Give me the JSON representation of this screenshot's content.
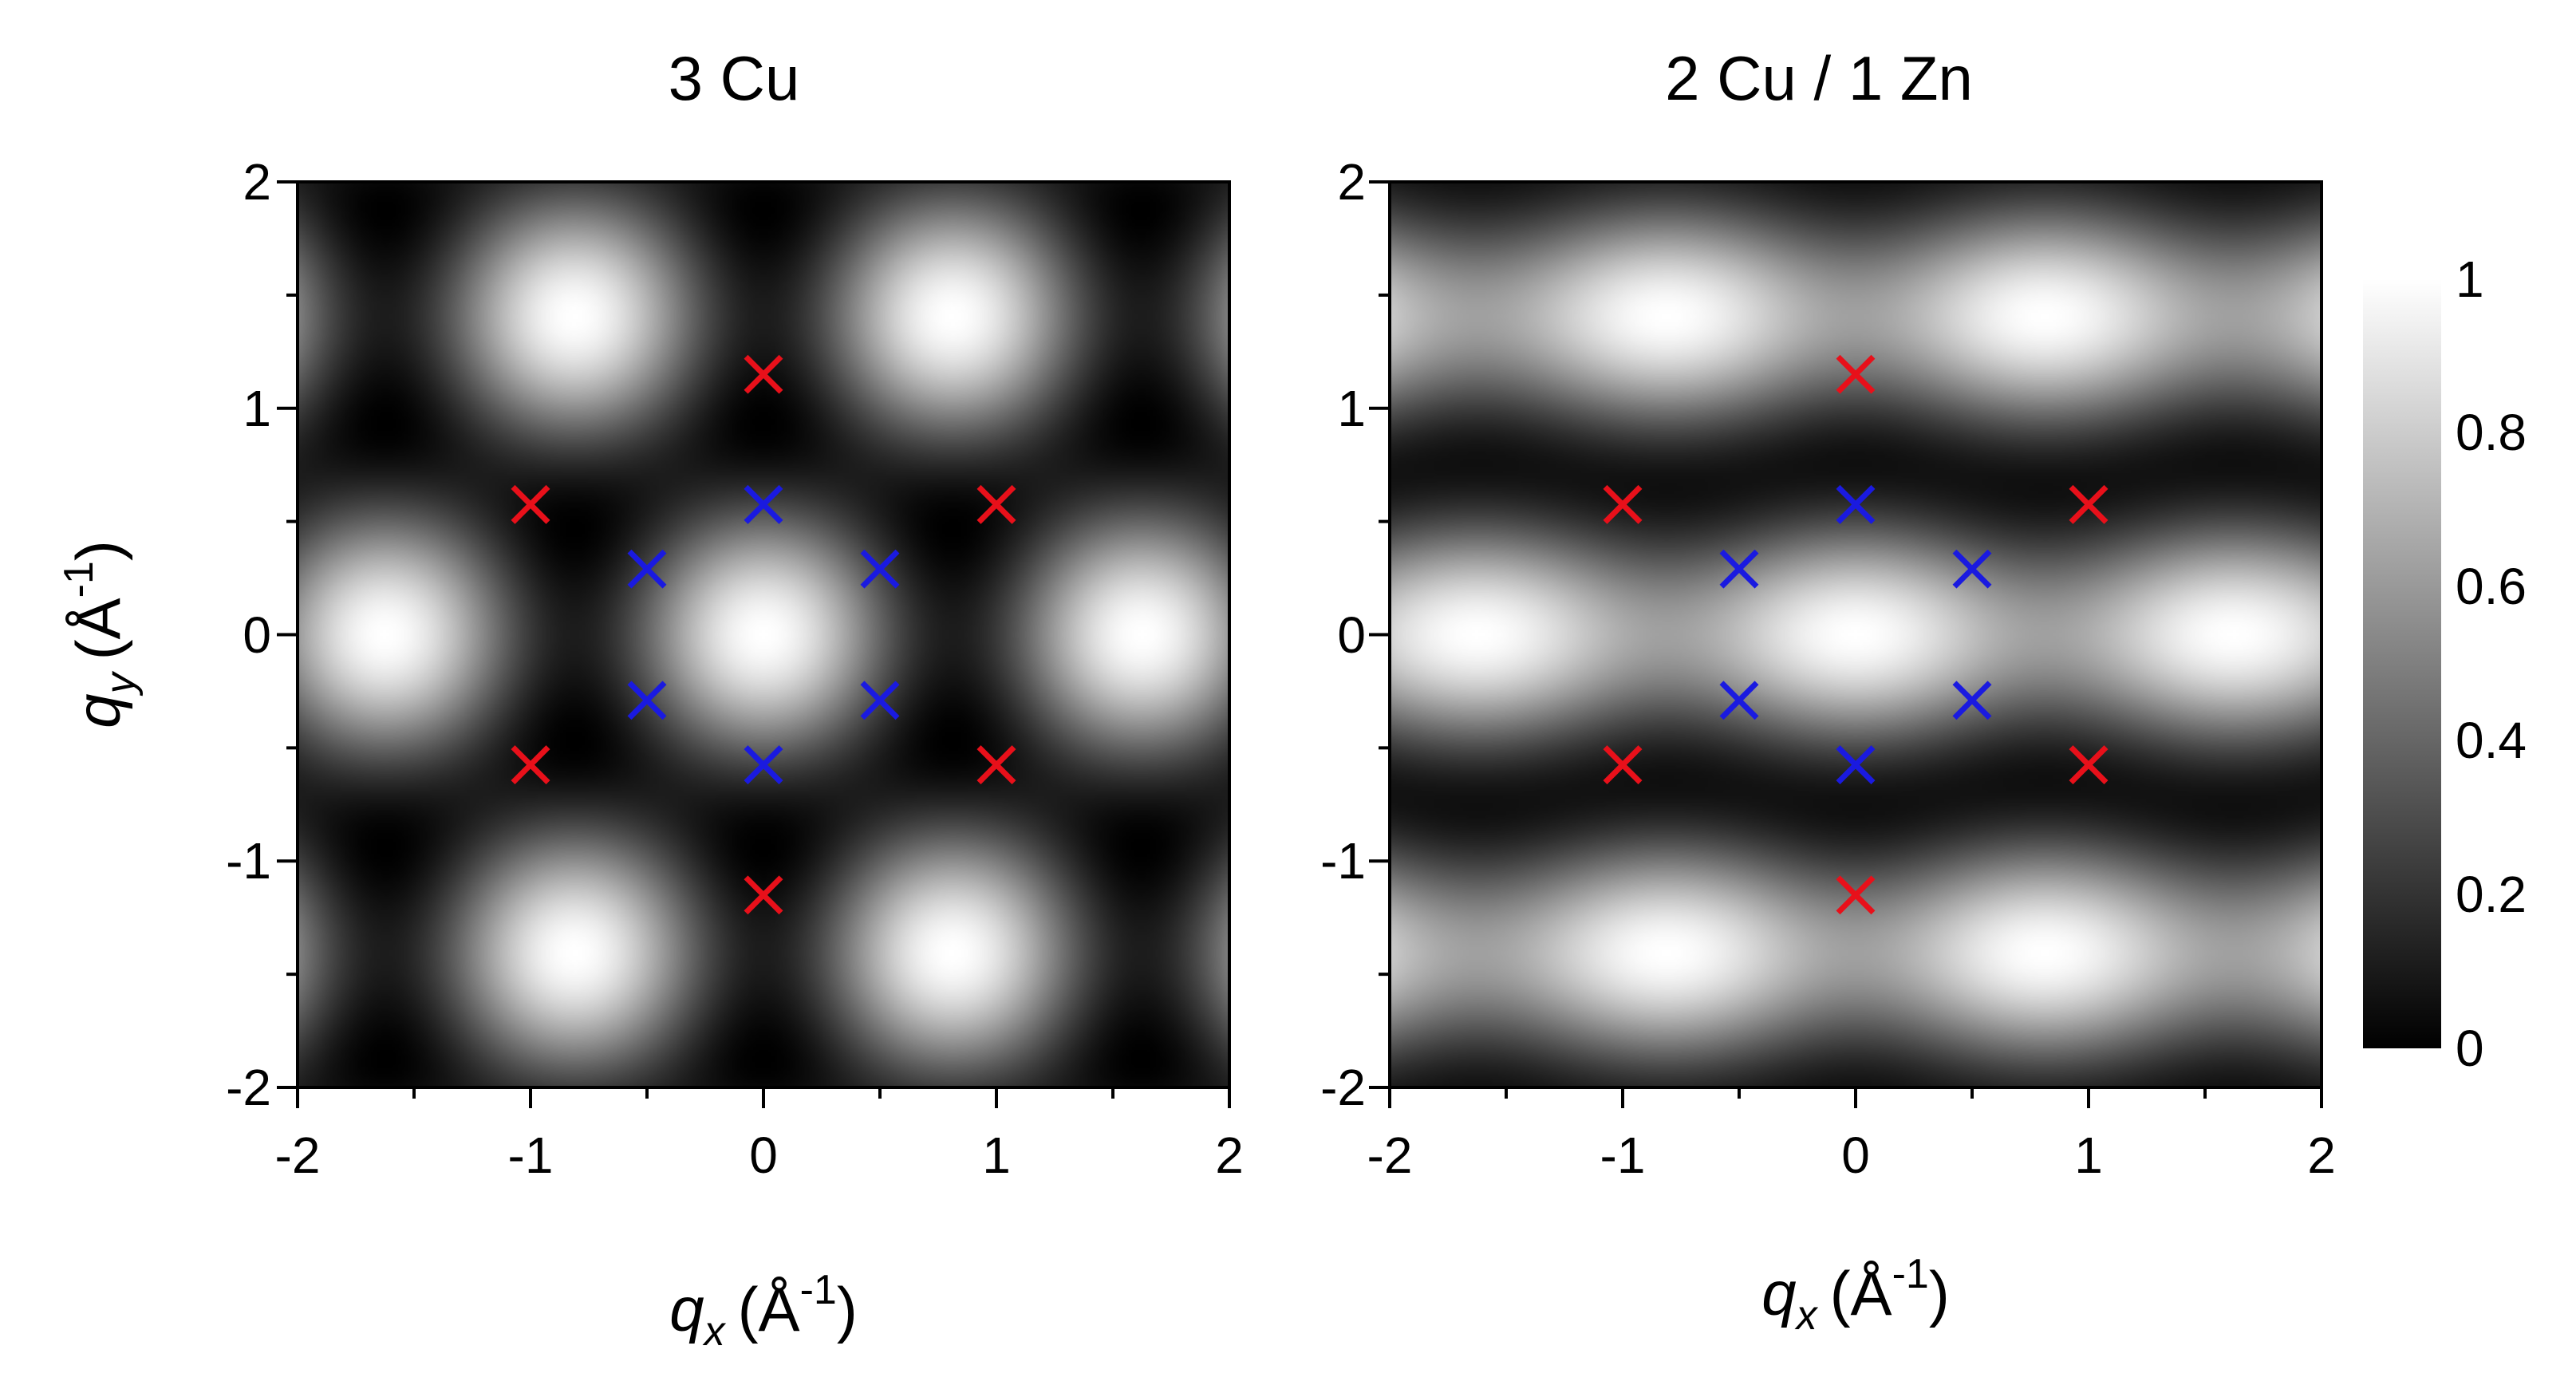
{
  "chart_data": [
    {
      "type": "heatmap",
      "title": "3 Cu",
      "xlabel": "q_x (Å^-1)",
      "ylabel": "q_y (Å^-1)",
      "xlim": [
        -2,
        2
      ],
      "ylim": [
        -2,
        2
      ],
      "x_ticks": [
        "-2",
        "-1",
        "0",
        "1",
        "2"
      ],
      "y_ticks": [
        "-2",
        "-1",
        "0",
        "1",
        "2"
      ],
      "colormap": "gray",
      "grid": false,
      "markers": [
        {
          "color": "#e8101a",
          "symbol": "x",
          "points": [
            [
              0,
              1.15
            ],
            [
              -1,
              0.575
            ],
            [
              1,
              0.575
            ],
            [
              -1,
              -0.575
            ],
            [
              1,
              -0.575
            ],
            [
              0,
              -1.15
            ]
          ]
        },
        {
          "color": "#1a1ae0",
          "symbol": "x",
          "points": [
            [
              0,
              0.575
            ],
            [
              -0.5,
              0.29
            ],
            [
              0.5,
              0.29
            ],
            [
              -0.5,
              -0.29
            ],
            [
              0.5,
              -0.29
            ],
            [
              0,
              -0.575
            ]
          ]
        }
      ]
    },
    {
      "type": "heatmap",
      "title": "2 Cu / 1 Zn",
      "xlabel": "q_x (Å^-1)",
      "ylabel": "",
      "xlim": [
        -2,
        2
      ],
      "ylim": [
        -2,
        2
      ],
      "x_ticks": [
        "-2",
        "-1",
        "0",
        "1",
        "2"
      ],
      "y_ticks": [
        "-2",
        "-1",
        "0",
        "1",
        "2"
      ],
      "colormap": "gray",
      "grid": false,
      "colorbar": {
        "range": [
          0,
          1
        ],
        "ticks": [
          "0",
          "0.2",
          "0.4",
          "0.6",
          "0.8",
          "1"
        ]
      },
      "markers": [
        {
          "color": "#e8101a",
          "symbol": "x",
          "points": [
            [
              0,
              1.15
            ],
            [
              -1,
              0.575
            ],
            [
              1,
              0.575
            ],
            [
              -1,
              -0.575
            ],
            [
              1,
              -0.575
            ],
            [
              0,
              -1.15
            ]
          ]
        },
        {
          "color": "#1a1ae0",
          "symbol": "x",
          "points": [
            [
              0,
              0.575
            ],
            [
              -0.5,
              0.29
            ],
            [
              0.5,
              0.29
            ],
            [
              -0.5,
              -0.29
            ],
            [
              0.5,
              -0.29
            ],
            [
              0,
              -0.575
            ]
          ]
        }
      ]
    }
  ],
  "labels": {
    "panel1_title": "3 Cu",
    "panel2_title": "2 Cu / 1 Zn",
    "q_symbol": "q",
    "x_sub": "x",
    "y_sub": "y",
    "unit_open": "(Å",
    "unit_exp": "-1",
    "unit_close": ")"
  }
}
